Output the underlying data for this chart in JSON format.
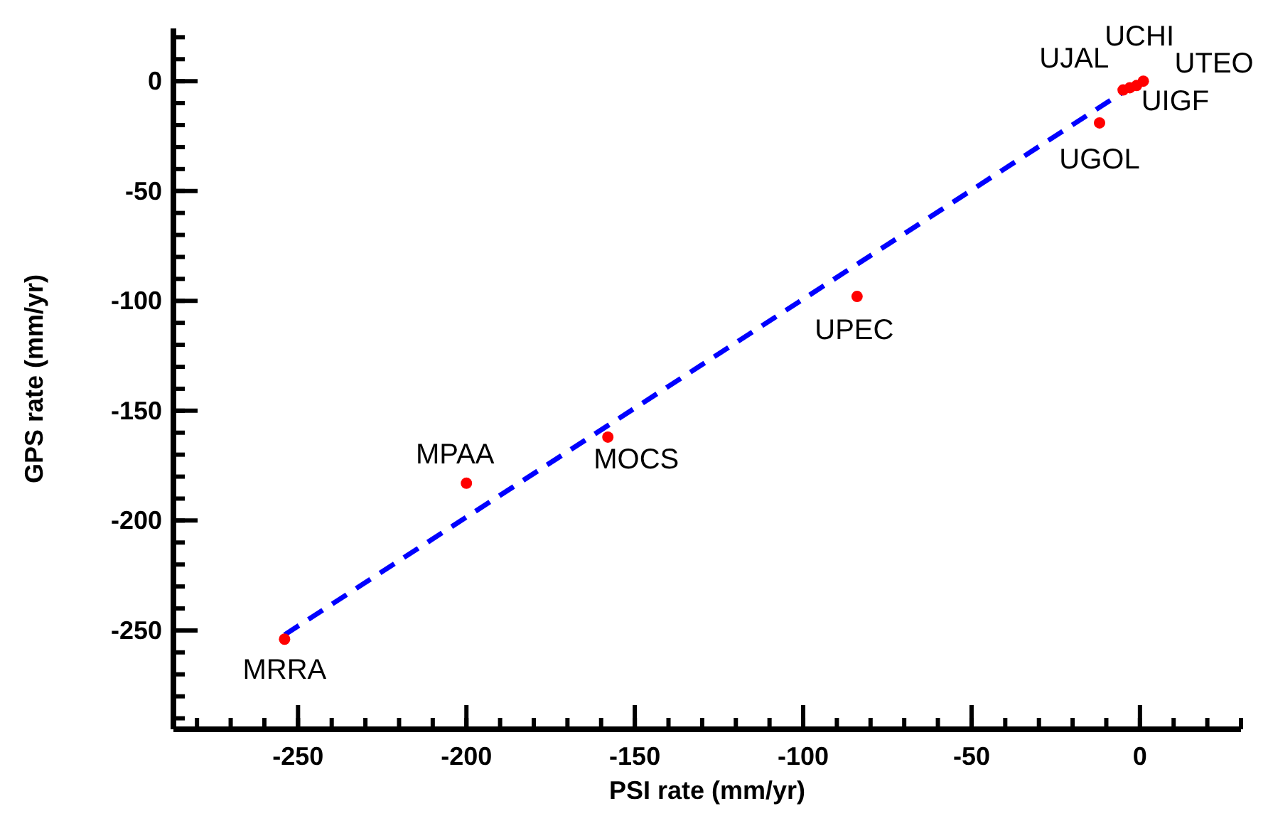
{
  "chart_data": {
    "type": "scatter",
    "xlabel": "PSI rate (mm/yr)",
    "ylabel": "GPS rate (mm/yr)",
    "xlim": [
      -287,
      30
    ],
    "ylim": [
      -295,
      24
    ],
    "xticks": [
      -250,
      -200,
      -150,
      -100,
      -50,
      0
    ],
    "yticks": [
      -250,
      -200,
      -150,
      -100,
      -50,
      0
    ],
    "grid": false,
    "series": [
      {
        "marker": "circle",
        "color": "#ff0000",
        "x": [
          -254,
          -200,
          -158,
          -84,
          -12,
          -5,
          -3,
          -1,
          1
        ],
        "values": [
          -254,
          -183,
          -162,
          -98,
          -19,
          -4,
          -3,
          -2,
          0
        ]
      },
      {
        "type": "line",
        "color": "#0000ff",
        "line_style": "dashed",
        "x": [
          -254,
          0
        ],
        "values": [
          -252,
          0
        ]
      }
    ],
    "annotations": [
      {
        "text": "MRRA",
        "x": -254,
        "y": -254
      },
      {
        "text": "MPAA",
        "x": -200,
        "y": -183
      },
      {
        "text": "MOCS",
        "x": -158,
        "y": -162
      },
      {
        "text": "UPEC",
        "x": -84,
        "y": -98
      },
      {
        "text": "UGOL",
        "x": -12,
        "y": -19
      },
      {
        "text": "UJAL",
        "x": -5,
        "y": -4
      },
      {
        "text": "UIGF",
        "x": -3,
        "y": -3
      },
      {
        "text": "UCHI",
        "x": -1,
        "y": -2
      },
      {
        "text": "UTEO",
        "x": 1,
        "y": 0
      }
    ]
  }
}
